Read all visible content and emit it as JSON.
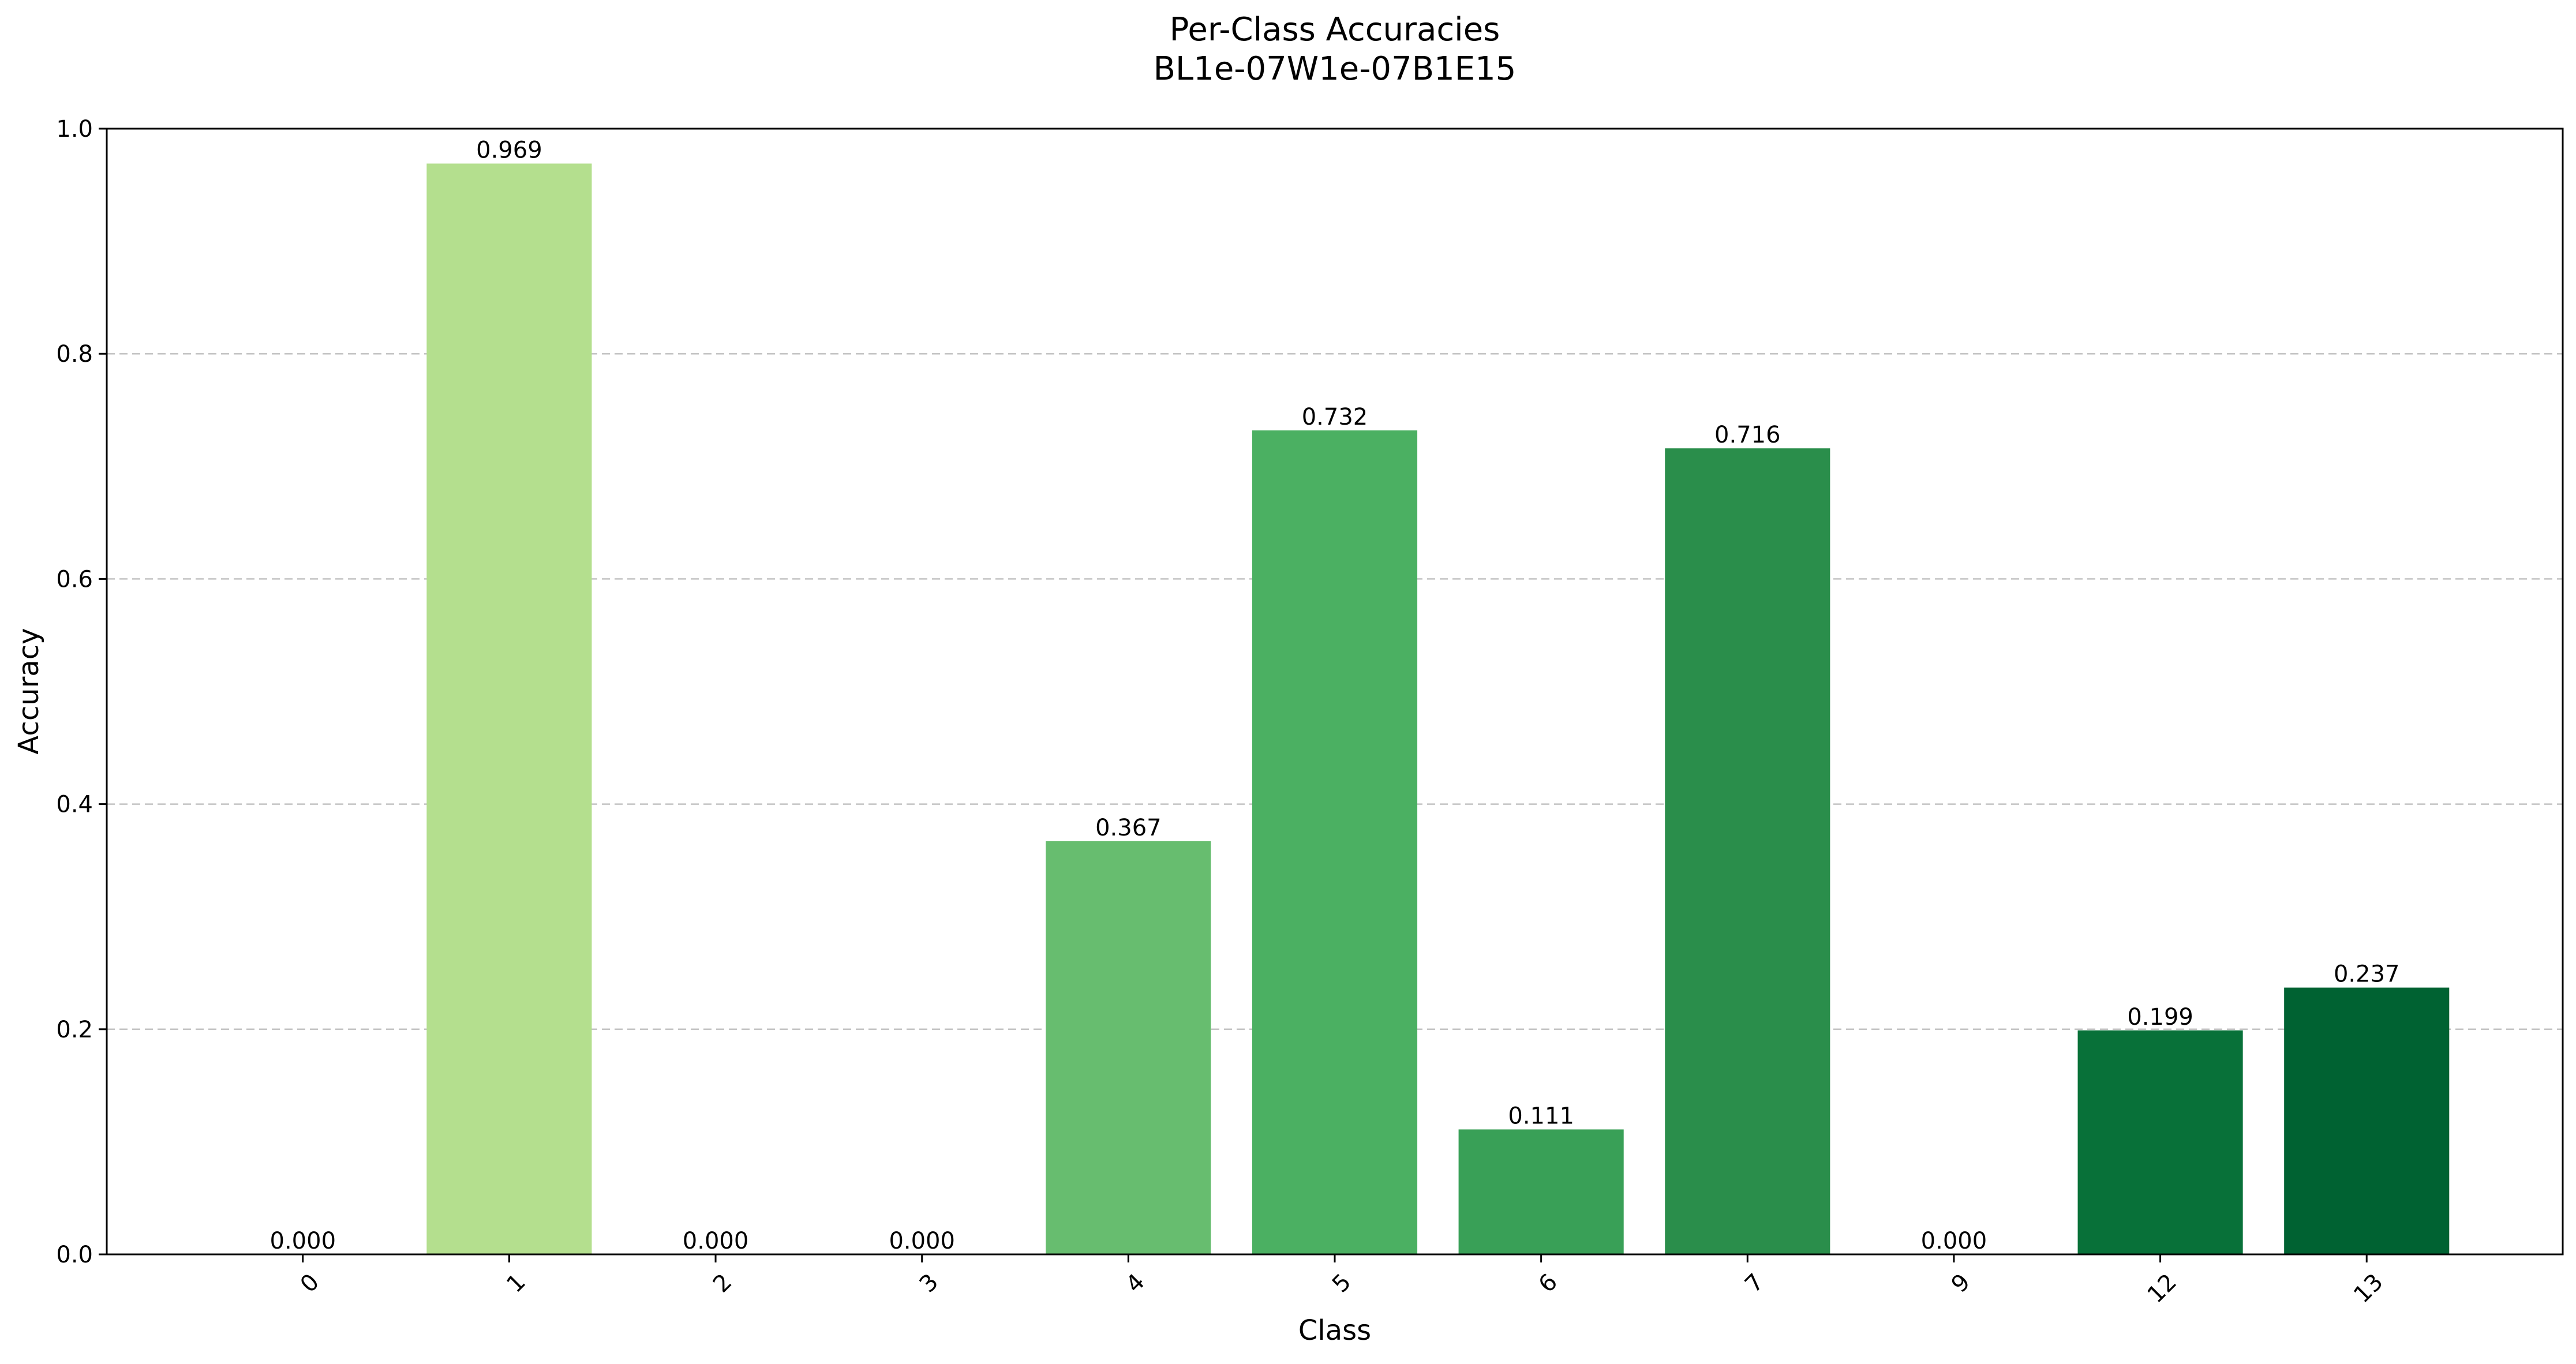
{
  "chart_data": {
    "type": "bar",
    "title": "Per-Class Accuracies",
    "subtitle": "BL1e-07W1e-07B1E15",
    "xlabel": "Class",
    "ylabel": "Accuracy",
    "ylim": [
      0,
      1.0
    ],
    "yticks": [
      0.0,
      0.2,
      0.4,
      0.6,
      0.8,
      1.0
    ],
    "ytick_labels": [
      "0.0",
      "0.2",
      "0.4",
      "0.6",
      "0.8",
      "1.0"
    ],
    "grid": "y-dashed",
    "categories": [
      "0",
      "1",
      "2",
      "3",
      "4",
      "5",
      "6",
      "7",
      "9",
      "12",
      "13"
    ],
    "values": [
      0.0,
      0.969,
      0.0,
      0.0,
      0.367,
      0.732,
      0.111,
      0.716,
      0.0,
      0.199,
      0.237
    ],
    "value_labels": [
      "0.000",
      "0.969",
      "0.000",
      "0.000",
      "0.367",
      "0.732",
      "0.111",
      "0.716",
      "0.000",
      "0.199",
      "0.237"
    ],
    "colors": [
      "#ecf7d8",
      "#b4df8e",
      "#a0d683",
      "#86cb76",
      "#67bd6f",
      "#4bb062",
      "#39a057",
      "#2a8e4b",
      "#168040",
      "#087139",
      "#006232"
    ],
    "x_tick_rotation": -45
  }
}
